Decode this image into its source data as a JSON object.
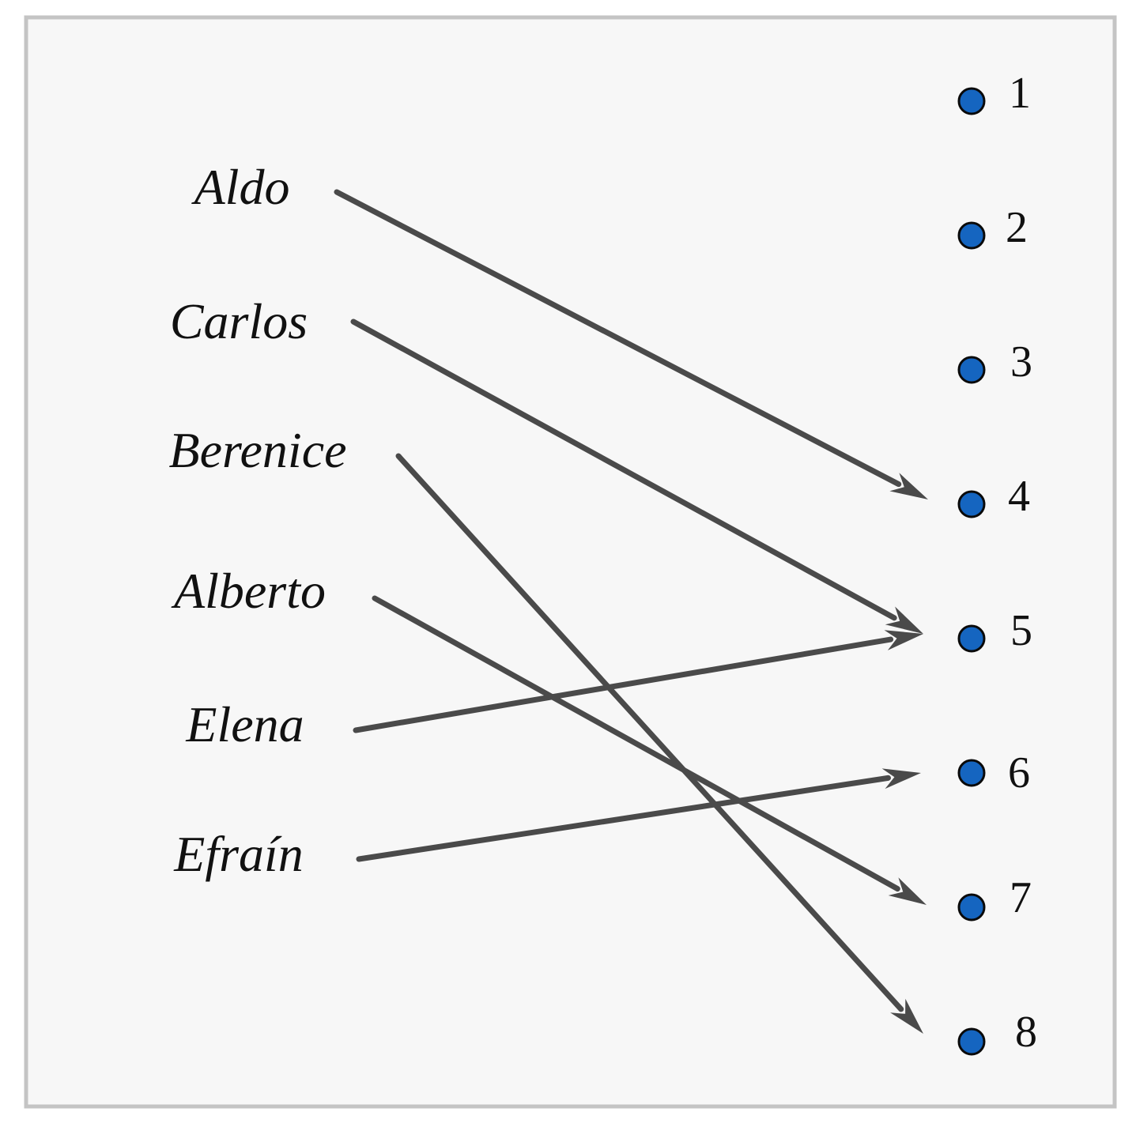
{
  "diagram": {
    "left_set": [
      {
        "id": "aldo",
        "label": "Aldo"
      },
      {
        "id": "carlos",
        "label": "Carlos"
      },
      {
        "id": "berenice",
        "label": "Berenice"
      },
      {
        "id": "alberto",
        "label": "Alberto"
      },
      {
        "id": "elena",
        "label": "Elena"
      },
      {
        "id": "efrain",
        "label": "Efraín"
      }
    ],
    "right_set": [
      {
        "id": "n1",
        "label": "1"
      },
      {
        "id": "n2",
        "label": "2"
      },
      {
        "id": "n3",
        "label": "3"
      },
      {
        "id": "n4",
        "label": "4"
      },
      {
        "id": "n5",
        "label": "5"
      },
      {
        "id": "n6",
        "label": "6"
      },
      {
        "id": "n7",
        "label": "7"
      },
      {
        "id": "n8",
        "label": "8"
      }
    ],
    "mappings": [
      {
        "from": "aldo",
        "to": "n4"
      },
      {
        "from": "carlos",
        "to": "n5"
      },
      {
        "from": "berenice",
        "to": "n8"
      },
      {
        "from": "alberto",
        "to": "n7"
      },
      {
        "from": "elena",
        "to": "n5"
      },
      {
        "from": "efrain",
        "to": "n6"
      }
    ],
    "colors": {
      "panel_fill": "#f7f7f7",
      "panel_border": "#c4c4c4",
      "arrow": "#4a4a4a",
      "dot_fill": "#1565c0",
      "dot_stroke": "#0a0a0a"
    }
  }
}
